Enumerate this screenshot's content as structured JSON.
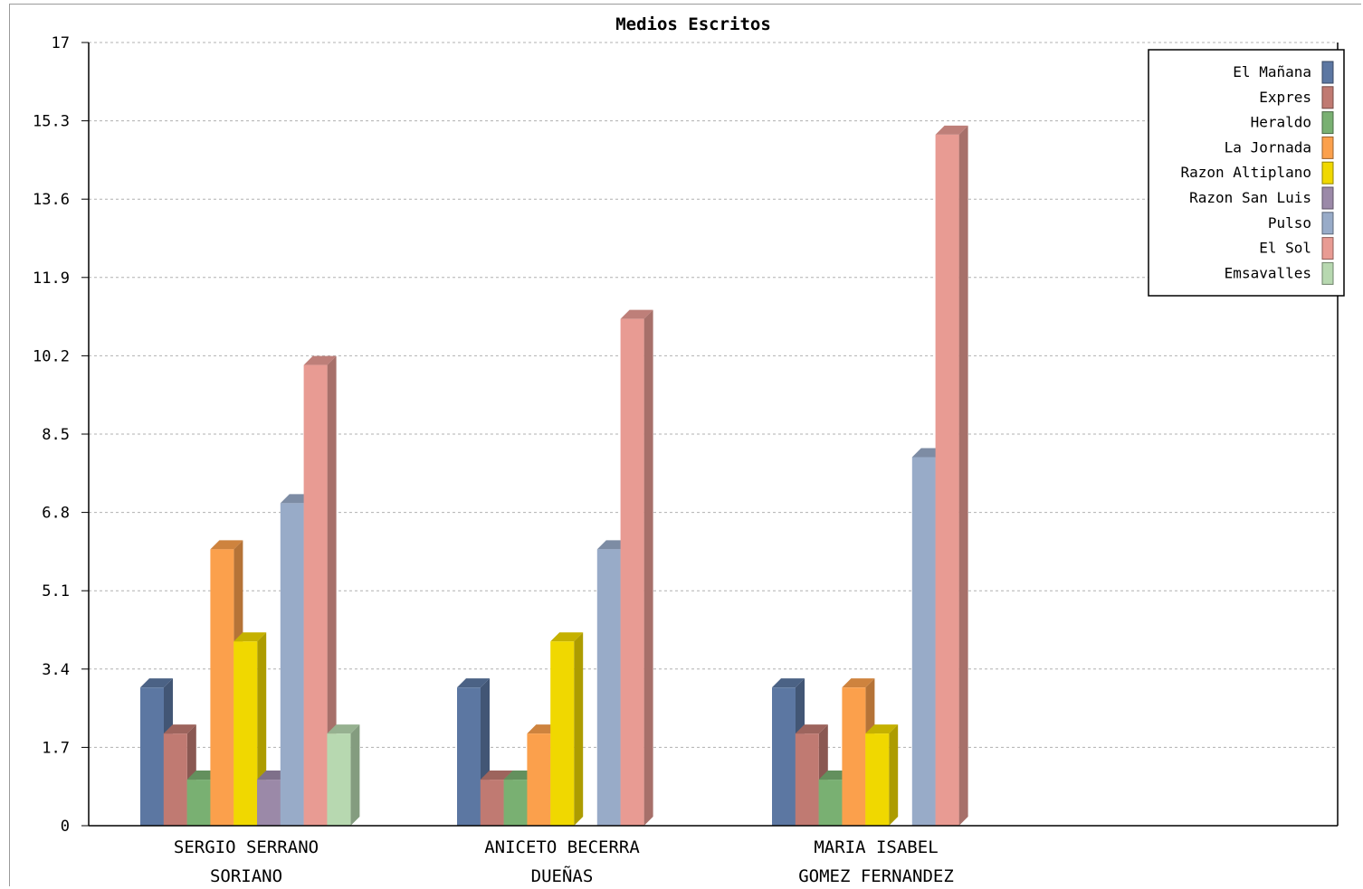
{
  "chart_data": {
    "type": "bar",
    "title": "Medios Escritos",
    "xlabel": "",
    "ylabel": "",
    "ylim": [
      0,
      17
    ],
    "y_ticks": [
      "0",
      "1.7",
      "3.4",
      "5.1",
      "6.8",
      "8.5",
      "10.2",
      "11.9",
      "13.6",
      "15.3",
      "17"
    ],
    "grid": true,
    "legend_position": "top-right",
    "categories": [
      [
        "SERGIO SERRANO",
        "SORIANO"
      ],
      [
        "ANICETO BECERRA",
        "DUEÑAS"
      ],
      [
        "MARIA ISABEL",
        "GOMEZ FERNANDEZ"
      ]
    ],
    "series": [
      {
        "name": "El Mañana",
        "color": "#5c77a2",
        "values": [
          3,
          3,
          3
        ]
      },
      {
        "name": "Expres",
        "color": "#c07a72",
        "values": [
          2,
          1,
          2
        ]
      },
      {
        "name": "Heraldo",
        "color": "#79b072",
        "values": [
          1,
          1,
          1
        ]
      },
      {
        "name": "La Jornada",
        "color": "#fba04c",
        "values": [
          6,
          2,
          3
        ]
      },
      {
        "name": "Razon Altiplano",
        "color": "#f0d800",
        "values": [
          4,
          4,
          2
        ]
      },
      {
        "name": "Razon San Luis",
        "color": "#9b89a8",
        "values": [
          1,
          0,
          0
        ]
      },
      {
        "name": "Pulso",
        "color": "#98abc8",
        "values": [
          7,
          6,
          8
        ]
      },
      {
        "name": "El Sol",
        "color": "#e89b93",
        "values": [
          10,
          11,
          15
        ]
      },
      {
        "name": "Emsavalles",
        "color": "#b7d8b0",
        "values": [
          2,
          0,
          0
        ]
      }
    ]
  }
}
